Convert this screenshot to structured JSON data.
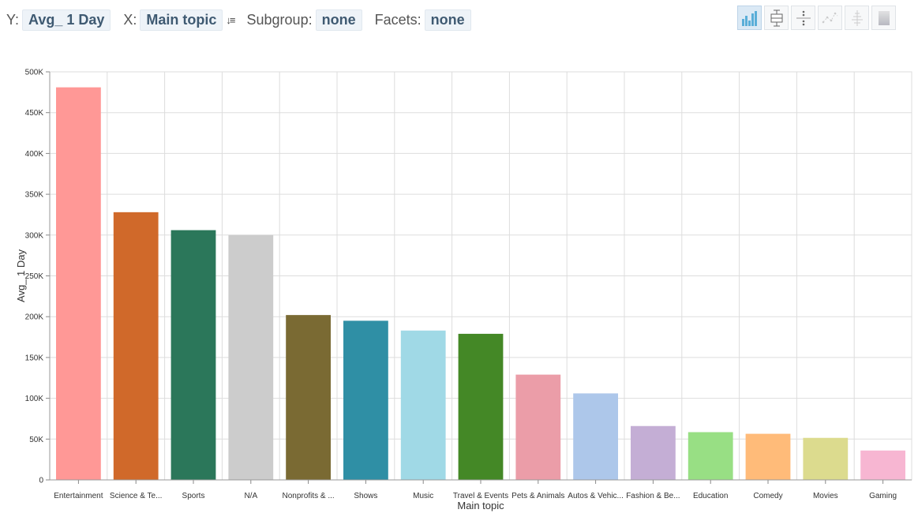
{
  "controls": {
    "y_label": "Y:",
    "y_value": "Avg_ 1 Day",
    "x_label": "X:",
    "x_value": "Main topic",
    "subgroup_label": "Subgroup:",
    "subgroup_value": "none",
    "facets_label": "Facets:",
    "facets_value": "none",
    "sort_icon": "sort-icon"
  },
  "chart_types": [
    "bar-chart-icon",
    "box-plot-icon",
    "strip-plot-icon",
    "line-chart-icon",
    "violin-plot-icon",
    "heatmap-icon"
  ],
  "chart_data": {
    "type": "bar",
    "xlabel": "Main topic",
    "ylabel": "Avg_ 1 Day",
    "ylim": [
      0,
      500000
    ],
    "yticks": [
      0,
      50000,
      100000,
      150000,
      200000,
      250000,
      300000,
      350000,
      400000,
      450000,
      500000
    ],
    "ytick_labels": [
      "0",
      "50K",
      "100K",
      "150K",
      "200K",
      "250K",
      "300K",
      "350K",
      "400K",
      "450K",
      "500K"
    ],
    "grid": true,
    "categories": [
      "Entertainment",
      "Science & Te...",
      "Sports",
      "N/A",
      "Nonprofits & ...",
      "Shows",
      "Music",
      "Travel & Events",
      "Pets & Animals",
      "Autos & Vehic...",
      "Fashion & Be...",
      "Education",
      "Comedy",
      "Movies",
      "Gaming"
    ],
    "values": [
      481000,
      328000,
      306000,
      300000,
      202000,
      195000,
      183000,
      179000,
      129000,
      106000,
      66000,
      58500,
      56500,
      51500,
      36000
    ],
    "colors": [
      "#ff9896",
      "#d0692a",
      "#2b775a",
      "#cccccc",
      "#7a6a33",
      "#2f8fa5",
      "#a0d9e6",
      "#448826",
      "#eb9da8",
      "#adc7ea",
      "#c4aed5",
      "#98df84",
      "#ffbb79",
      "#dcdb8e",
      "#f7b6d2"
    ]
  }
}
